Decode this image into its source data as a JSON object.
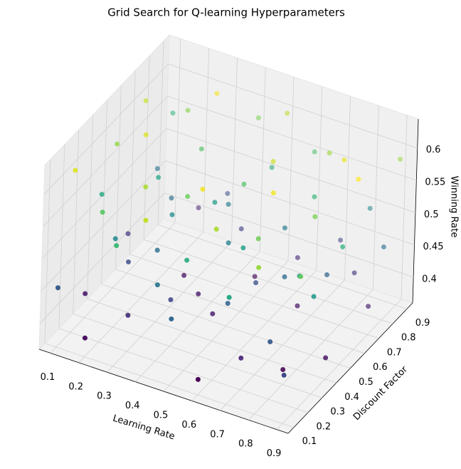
{
  "chart_data": {
    "type": "scatter3d",
    "title": "Grid Search for Q-learning Hyperparameters",
    "x_label": "Learning Rate",
    "y_label": "Discount Factor",
    "z_label": "Winning Rate",
    "colormap": "viridis",
    "xlim": [
      0.06,
      0.94
    ],
    "ylim": [
      0.06,
      0.94
    ],
    "zlim": [
      0.36,
      0.645
    ],
    "xticks": [
      0.1,
      0.2,
      0.3,
      0.4,
      0.5,
      0.6,
      0.7,
      0.8,
      0.9
    ],
    "yticks": [
      0.1,
      0.2,
      0.3,
      0.4,
      0.5,
      0.6,
      0.7,
      0.8,
      0.9
    ],
    "zticks": [
      0.4,
      0.45,
      0.5,
      0.55,
      0.6
    ],
    "grid": true,
    "x": [
      0.1,
      0.1,
      0.1,
      0.1,
      0.1,
      0.1,
      0.1,
      0.1,
      0.1,
      0.2,
      0.2,
      0.2,
      0.2,
      0.2,
      0.2,
      0.2,
      0.2,
      0.2,
      0.3,
      0.3,
      0.3,
      0.3,
      0.3,
      0.3,
      0.3,
      0.3,
      0.3,
      0.4,
      0.4,
      0.4,
      0.4,
      0.4,
      0.4,
      0.4,
      0.4,
      0.4,
      0.5,
      0.5,
      0.5,
      0.5,
      0.5,
      0.5,
      0.5,
      0.5,
      0.5,
      0.6,
      0.6,
      0.6,
      0.6,
      0.6,
      0.6,
      0.6,
      0.6,
      0.6,
      0.7,
      0.7,
      0.7,
      0.7,
      0.7,
      0.7,
      0.7,
      0.7,
      0.7,
      0.8,
      0.8,
      0.8,
      0.8,
      0.8,
      0.8,
      0.8,
      0.8,
      0.8,
      0.9,
      0.9,
      0.9,
      0.9,
      0.9,
      0.9,
      0.9,
      0.9,
      0.9
    ],
    "y": [
      0.1,
      0.2,
      0.3,
      0.4,
      0.5,
      0.6,
      0.7,
      0.8,
      0.9,
      0.1,
      0.2,
      0.3,
      0.4,
      0.5,
      0.6,
      0.7,
      0.8,
      0.9,
      0.1,
      0.2,
      0.3,
      0.4,
      0.5,
      0.6,
      0.7,
      0.8,
      0.9,
      0.1,
      0.2,
      0.3,
      0.4,
      0.5,
      0.6,
      0.7,
      0.8,
      0.9,
      0.1,
      0.2,
      0.3,
      0.4,
      0.5,
      0.6,
      0.7,
      0.8,
      0.9,
      0.1,
      0.2,
      0.3,
      0.4,
      0.5,
      0.6,
      0.7,
      0.8,
      0.9,
      0.1,
      0.2,
      0.3,
      0.4,
      0.5,
      0.6,
      0.7,
      0.8,
      0.9,
      0.1,
      0.2,
      0.3,
      0.4,
      0.5,
      0.6,
      0.7,
      0.8,
      0.9,
      0.1,
      0.2,
      0.3,
      0.4,
      0.5,
      0.6,
      0.7,
      0.8,
      0.9
    ],
    "z": [
      0.452,
      0.611,
      0.397,
      0.528,
      0.583,
      0.421,
      0.604,
      0.476,
      0.539,
      0.389,
      0.561,
      0.497,
      0.438,
      0.612,
      0.523,
      0.468,
      0.581,
      0.407,
      0.547,
      0.416,
      0.592,
      0.471,
      0.503,
      0.386,
      0.559,
      0.622,
      0.444,
      0.601,
      0.478,
      0.432,
      0.569,
      0.395,
      0.514,
      0.488,
      0.427,
      0.576,
      0.463,
      0.531,
      0.618,
      0.402,
      0.489,
      0.557,
      0.391,
      0.537,
      0.598,
      0.384,
      0.594,
      0.456,
      0.519,
      0.442,
      0.607,
      0.481,
      0.412,
      0.553,
      0.526,
      0.409,
      0.571,
      0.619,
      0.466,
      0.398,
      0.544,
      0.589,
      0.431,
      0.587,
      0.449,
      0.383,
      0.505,
      0.574,
      0.461,
      0.616,
      0.418,
      0.495,
      0.435,
      0.565,
      0.511,
      0.393,
      0.542,
      0.624,
      0.404,
      0.473,
      0.586
    ]
  }
}
